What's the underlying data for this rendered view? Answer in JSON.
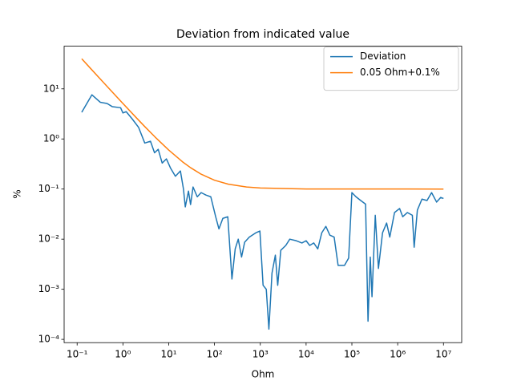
{
  "chart_data": {
    "type": "line",
    "title": "Deviation from indicated value",
    "xlabel": "Ohm",
    "ylabel": "%",
    "xscale": "log",
    "yscale": "log",
    "xlim": [
      0.052,
      25000000
    ],
    "ylim": [
      8.6e-05,
      71
    ],
    "xticks": [
      {
        "value": 0.1,
        "label": "10⁻¹"
      },
      {
        "value": 1,
        "label": "10⁰"
      },
      {
        "value": 10,
        "label": "10¹"
      },
      {
        "value": 100,
        "label": "10²"
      },
      {
        "value": 1000,
        "label": "10³"
      },
      {
        "value": 10000,
        "label": "10⁴"
      },
      {
        "value": 100000,
        "label": "10⁵"
      },
      {
        "value": 1000000,
        "label": "10⁶"
      },
      {
        "value": 10000000,
        "label": "10⁷"
      }
    ],
    "yticks": [
      {
        "value": 0.0001,
        "label": "10⁻⁴"
      },
      {
        "value": 0.001,
        "label": "10⁻³"
      },
      {
        "value": 0.01,
        "label": "10⁻²"
      },
      {
        "value": 0.1,
        "label": "10⁻¹"
      },
      {
        "value": 1,
        "label": "10⁰"
      },
      {
        "value": 10,
        "label": "10¹"
      }
    ],
    "legend": "upper right",
    "series": [
      {
        "name": "Deviation",
        "color": "#1f77b4",
        "x": [
          0.126,
          0.21,
          0.32,
          0.45,
          0.59,
          0.89,
          1.0,
          1.18,
          1.6,
          2.2,
          3.0,
          4.0,
          4.9,
          5.9,
          7.2,
          8.9,
          11,
          14,
          18,
          21,
          23,
          27,
          30,
          34,
          42,
          51,
          65,
          83,
          106,
          125,
          152,
          195,
          240,
          283,
          330,
          390,
          455,
          575,
          800,
          980,
          1150,
          1350,
          1540,
          1800,
          2130,
          2400,
          2800,
          3600,
          4400,
          6100,
          8100,
          10000,
          12000,
          14700,
          18000,
          22000,
          27000,
          33000,
          41000,
          50000,
          69000,
          85000,
          100000,
          123000,
          156000,
          199000,
          225000,
          252000,
          275000,
          324000,
          380000,
          467000,
          573000,
          672000,
          853000,
          1100000,
          1290000,
          1630000,
          2090000,
          2290000,
          2690000,
          3390000,
          4370000,
          5500000,
          7080000,
          8710000,
          10000000
        ],
        "values": [
          3.4,
          7.6,
          5.4,
          5.1,
          4.4,
          4.2,
          3.3,
          3.5,
          2.5,
          1.7,
          0.83,
          0.9,
          0.53,
          0.62,
          0.33,
          0.4,
          0.26,
          0.18,
          0.23,
          0.1,
          0.044,
          0.091,
          0.049,
          0.11,
          0.07,
          0.085,
          0.076,
          0.07,
          0.028,
          0.016,
          0.026,
          0.028,
          0.0016,
          0.0064,
          0.01,
          0.0044,
          0.0087,
          0.011,
          0.0134,
          0.0145,
          0.0012,
          0.001,
          0.00016,
          0.0021,
          0.0048,
          0.0012,
          0.006,
          0.0075,
          0.01,
          0.0093,
          0.0084,
          0.0093,
          0.0075,
          0.0084,
          0.0064,
          0.0134,
          0.018,
          0.012,
          0.011,
          0.003,
          0.003,
          0.0042,
          0.085,
          0.07,
          0.059,
          0.05,
          0.00023,
          0.0044,
          0.00071,
          0.03,
          0.0026,
          0.0134,
          0.021,
          0.011,
          0.034,
          0.041,
          0.028,
          0.034,
          0.03,
          0.0069,
          0.038,
          0.063,
          0.059,
          0.085,
          0.055,
          0.068,
          0.065
        ]
      },
      {
        "name": "0.05 Ohm+0.1%",
        "color": "#ff7f0e",
        "x": [
          0.126,
          0.2,
          0.3,
          0.5,
          1,
          2,
          3,
          5,
          10,
          20,
          30,
          50,
          100,
          200,
          500,
          1000,
          10000,
          10000000
        ],
        "values": [
          39.8,
          25.1,
          16.77,
          10.1,
          5.1,
          2.6,
          1.767,
          1.1,
          0.6,
          0.35,
          0.267,
          0.2,
          0.15,
          0.125,
          0.11,
          0.105,
          0.1005,
          0.1
        ]
      }
    ]
  }
}
